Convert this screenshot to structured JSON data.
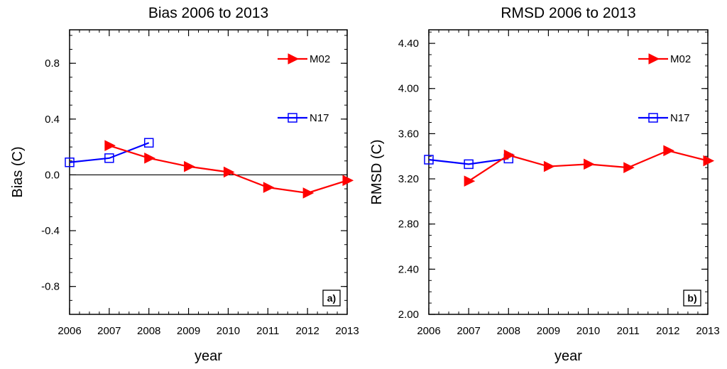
{
  "colors": {
    "m02": "#ff0000",
    "n17": "#0000ff",
    "axis": "#000000"
  },
  "chart_data": [
    {
      "type": "line",
      "title": "Bias 2006 to 2013",
      "xlabel": "year",
      "ylabel": "Bias (C)",
      "panel_label": "a)",
      "x_ticks": [
        "2006",
        "2007",
        "2008",
        "2009",
        "2010",
        "2011",
        "2012",
        "2013"
      ],
      "xlim": [
        2006,
        2013
      ],
      "y_ticks": [
        -0.8,
        -0.4,
        0.0,
        0.4,
        0.8
      ],
      "y_tick_labels": [
        "-0.8",
        "-0.4",
        "0.0",
        "0.4",
        "0.8"
      ],
      "ylim": [
        -1.0,
        1.04
      ],
      "zero_line": true,
      "legend_position": "top-right",
      "series": [
        {
          "name": "M02",
          "marker": "triangle-right",
          "color": "#ff0000",
          "x": [
            2007,
            2008,
            2009,
            2010,
            2011,
            2012,
            2013
          ],
          "y": [
            0.21,
            0.12,
            0.06,
            0.02,
            -0.09,
            -0.13,
            -0.04
          ]
        },
        {
          "name": "N17",
          "marker": "square",
          "color": "#0000ff",
          "x": [
            2006,
            2007,
            2008
          ],
          "y": [
            0.09,
            0.12,
            0.23
          ]
        }
      ]
    },
    {
      "type": "line",
      "title": "RMSD 2006 to 2013",
      "xlabel": "year",
      "ylabel": "RMSD (C)",
      "panel_label": "b)",
      "x_ticks": [
        "2006",
        "2007",
        "2008",
        "2009",
        "2010",
        "2011",
        "2012",
        "2013"
      ],
      "xlim": [
        2006,
        2013
      ],
      "y_ticks": [
        2.0,
        2.4,
        2.8,
        3.2,
        3.6,
        4.0,
        4.4
      ],
      "y_tick_labels": [
        "2.00",
        "2.40",
        "2.80",
        "3.20",
        "3.60",
        "4.00",
        "4.40"
      ],
      "ylim": [
        2.0,
        4.52
      ],
      "zero_line": false,
      "legend_position": "top-right",
      "series": [
        {
          "name": "M02",
          "marker": "triangle-right",
          "color": "#ff0000",
          "x": [
            2007,
            2008,
            2009,
            2010,
            2011,
            2012,
            2013
          ],
          "y": [
            3.18,
            3.41,
            3.31,
            3.33,
            3.3,
            3.45,
            3.36
          ]
        },
        {
          "name": "N17",
          "marker": "square",
          "color": "#0000ff",
          "x": [
            2006,
            2007,
            2008
          ],
          "y": [
            3.37,
            3.33,
            3.38
          ]
        }
      ]
    }
  ]
}
